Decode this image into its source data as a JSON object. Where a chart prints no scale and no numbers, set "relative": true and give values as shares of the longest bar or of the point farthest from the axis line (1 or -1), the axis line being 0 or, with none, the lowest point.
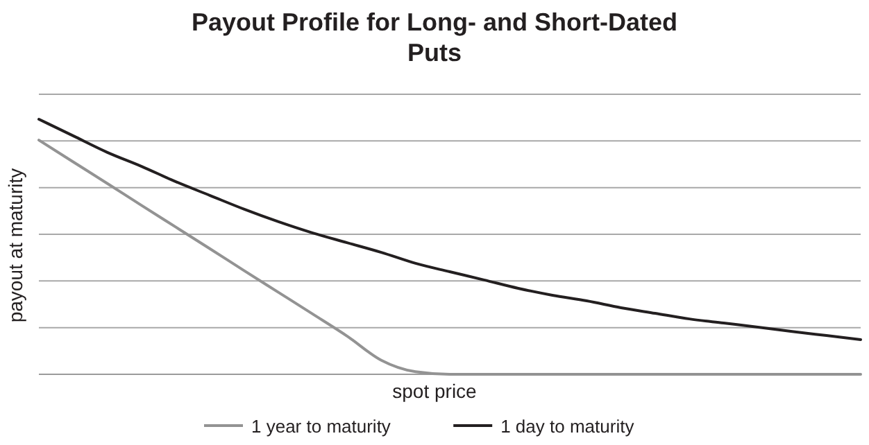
{
  "chart_data": {
    "type": "line",
    "title": "Payout Profile for Long- and Short-Dated Puts",
    "xlabel": "spot price",
    "ylabel": "payout at maturity",
    "relative": true,
    "grid": true,
    "legend": "bottom",
    "marker": "none",
    "line_style": "solid",
    "categories": [
      null,
      null,
      null,
      null,
      null,
      null,
      null,
      null,
      null,
      null,
      null,
      null,
      null,
      null,
      null,
      null,
      null,
      null,
      null,
      null,
      null,
      null,
      null,
      null,
      null
    ],
    "series": [
      {
        "name": "1 year to maturity",
        "color": "#939393",
        "values": [
          0.918,
          0.833,
          0.748,
          0.662,
          0.577,
          0.492,
          0.406,
          0.321,
          0.236,
          0.15,
          0.055,
          0.01,
          0,
          0,
          0,
          0,
          0,
          0,
          0,
          0,
          0,
          0,
          0,
          0,
          0
        ]
      },
      {
        "name": "1 day to maturity",
        "color": "#231f20",
        "values": [
          1,
          0.935,
          0.87,
          0.815,
          0.755,
          0.701,
          0.647,
          0.598,
          0.554,
          0.516,
          0.478,
          0.435,
          0.402,
          0.37,
          0.337,
          0.31,
          0.288,
          0.261,
          0.239,
          0.217,
          0.201,
          0.185,
          0.168,
          0.152,
          0.136
        ]
      }
    ]
  }
}
